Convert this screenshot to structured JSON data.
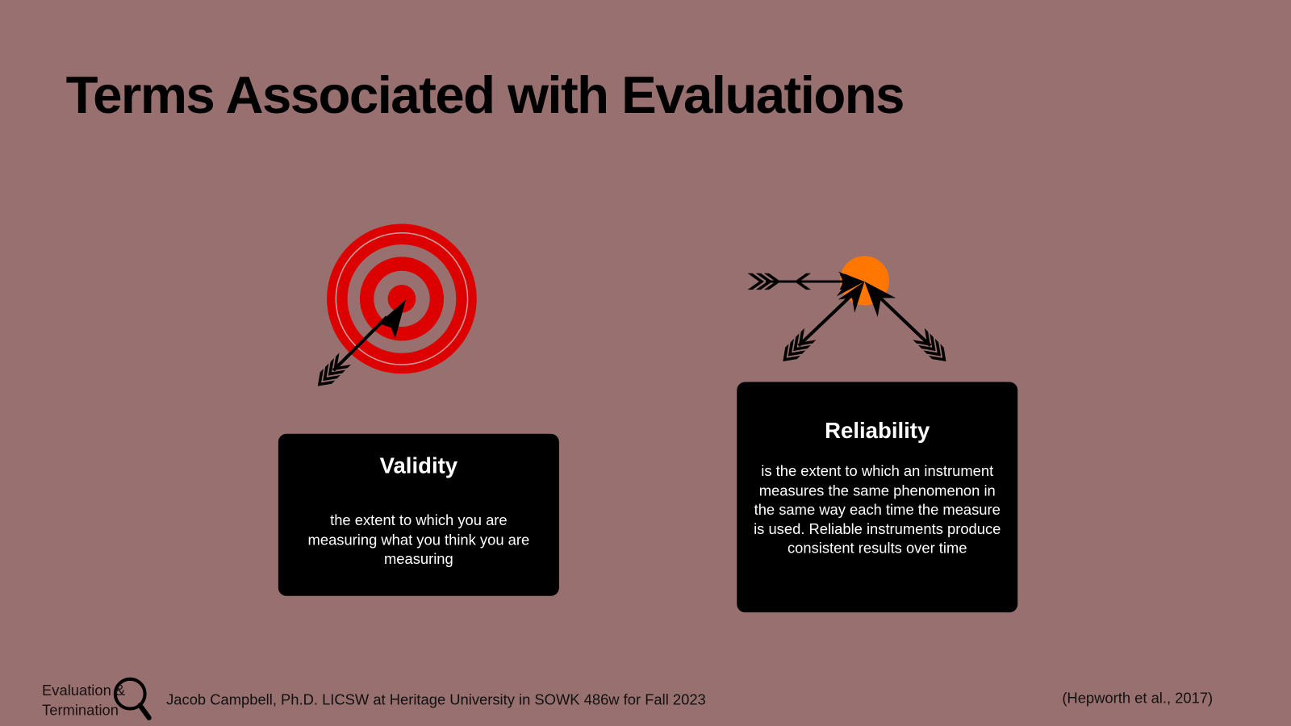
{
  "slide": {
    "title": "Terms Associated with Evaluations",
    "colors": {
      "background": "#97706f",
      "target_red": "#dd0000",
      "reliability_dot": "#ff7700",
      "card": "#000000"
    },
    "validity": {
      "heading": "Validity",
      "text": "the extent to which you are measuring what you think you are measuring",
      "icon": "target-with-arrow-icon"
    },
    "reliability": {
      "heading": "Reliability",
      "text": "is the extent to which an instrument measures the same phenomenon in the same way each time the measure is used. Reliable instruments produce consistent results over time",
      "icon": "three-arrows-converging-icon"
    },
    "footer": {
      "logo_line1": "Evaluation &",
      "logo_line2": "Termination",
      "logo_icon": "magnifying-glass-icon",
      "credit": "Jacob Campbell, Ph.D. LICSW at Heritage University in SOWK 486w for Fall 2023",
      "citation": "(Hepworth et al., 2017)"
    }
  }
}
